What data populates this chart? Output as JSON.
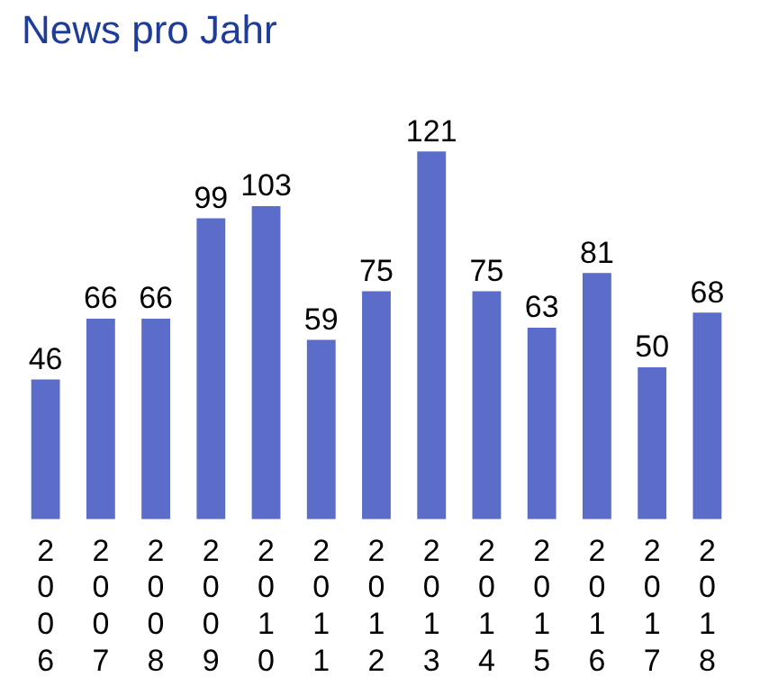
{
  "chart_data": {
    "type": "bar",
    "title": "News pro Jahr",
    "categories": [
      "2006",
      "2007",
      "2008",
      "2009",
      "2010",
      "2011",
      "2012",
      "2013",
      "2014",
      "2015",
      "2016",
      "2017",
      "2018"
    ],
    "values": [
      46,
      66,
      66,
      99,
      103,
      59,
      75,
      121,
      75,
      63,
      81,
      50,
      68
    ],
    "color": "#5b6cc9",
    "data_labels": true,
    "grid": false,
    "legend": false
  }
}
